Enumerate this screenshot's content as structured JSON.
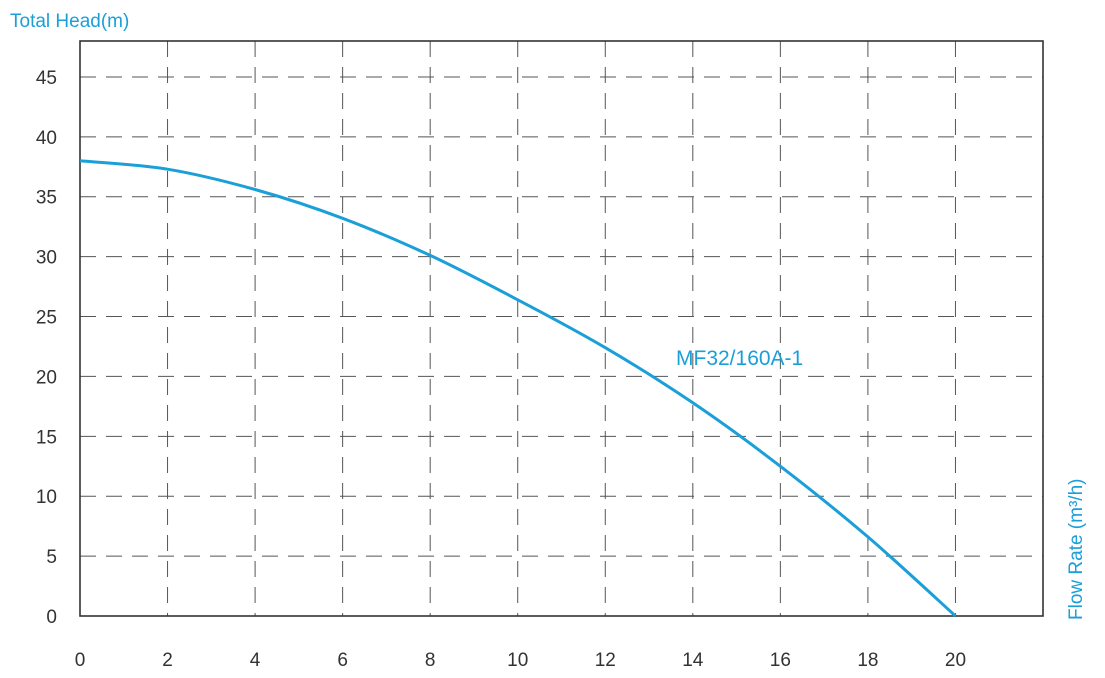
{
  "chart_data": {
    "type": "line",
    "ylabel": "Total Head(m)",
    "xlabel": "Flow Rate (m³/h)",
    "xlim": [
      0,
      22
    ],
    "ylim": [
      0,
      48
    ],
    "x_ticks": [
      0,
      2,
      4,
      6,
      8,
      10,
      12,
      14,
      16,
      18,
      20
    ],
    "y_ticks": [
      0,
      5,
      10,
      15,
      20,
      25,
      30,
      35,
      40,
      45
    ],
    "grid": true,
    "series": [
      {
        "name": "MF32/160A-1",
        "color": "#1a9fd8",
        "x": [
          0,
          2,
          4,
          6,
          8,
          10,
          12,
          14,
          16,
          18,
          20
        ],
        "y": [
          38.0,
          37.3,
          35.6,
          33.2,
          30.1,
          26.4,
          22.4,
          17.8,
          12.5,
          6.6,
          0
        ]
      }
    ]
  }
}
